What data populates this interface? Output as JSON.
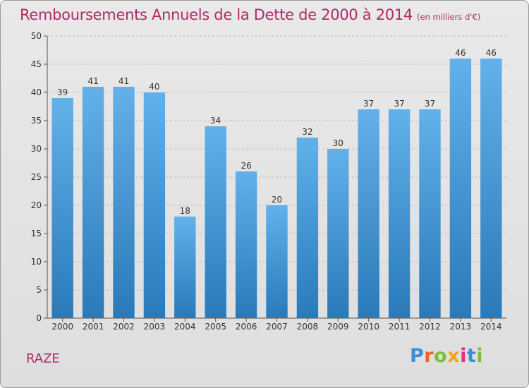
{
  "title": "Remboursements Annuels de la Dette de 2000 à 2014",
  "subtitle": "(en milliers d'€)",
  "place_name": "RAZE",
  "logo": {
    "letters": [
      "P",
      "r",
      "o",
      "x",
      "i",
      "t",
      "i"
    ],
    "colors": [
      "#3b8fd6",
      "#e3662d",
      "#7cbf3a",
      "#f0a51e",
      "#e0327a",
      "#3b8fd6",
      "#7cbf3a"
    ]
  },
  "colors": {
    "title": "#b02968",
    "bar_top": "#62b1ea",
    "bar_bottom": "#2a79b9",
    "grid": "#bdbdbd"
  },
  "chart_data": {
    "type": "bar",
    "title": "Remboursements Annuels de la Dette de 2000 à 2014",
    "subtitle": "(en milliers d'€)",
    "categories": [
      "2000",
      "2001",
      "2002",
      "2003",
      "2004",
      "2005",
      "2006",
      "2007",
      "2008",
      "2009",
      "2010",
      "2011",
      "2012",
      "2013",
      "2014"
    ],
    "values": [
      39,
      41,
      41,
      40,
      18,
      34,
      26,
      20,
      32,
      30,
      37,
      37,
      37,
      46,
      46
    ],
    "ylim": [
      0,
      50
    ],
    "yticks": [
      0,
      5,
      10,
      15,
      20,
      25,
      30,
      35,
      40,
      45,
      50
    ],
    "grid": "horizontal dashed",
    "legend": "none"
  }
}
